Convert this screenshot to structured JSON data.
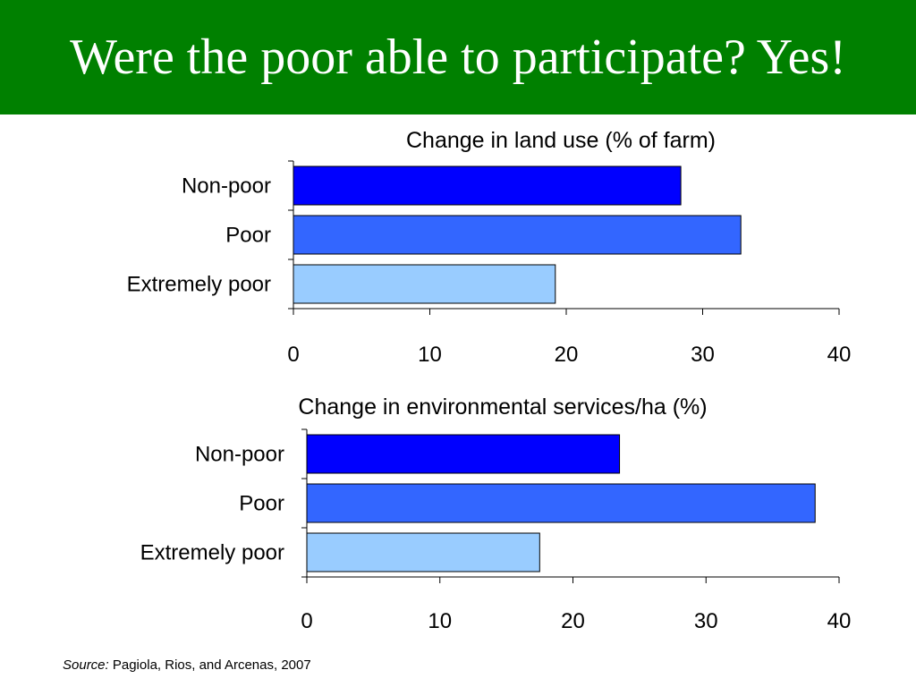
{
  "slide": {
    "title": "Were the poor able to participate? Yes!",
    "source_label": "Source:",
    "source_text": " Pagiola, Rios, and Arcenas, 2007"
  },
  "colors": {
    "header_bg": "#008000",
    "non_poor": "#0000FF",
    "poor": "#3366FF",
    "extremely_poor": "#99CCFF"
  },
  "chart_data": [
    {
      "type": "bar",
      "orientation": "horizontal",
      "title": "Change in land use (% of farm)",
      "categories": [
        "Non-poor",
        "Poor",
        "Extremely poor"
      ],
      "values": [
        28.4,
        32.8,
        19.2
      ],
      "bar_colors": [
        "#0000FF",
        "#3366FF",
        "#99CCFF"
      ],
      "xlim": [
        0,
        40
      ],
      "xticks": [
        0,
        10,
        20,
        30,
        40
      ],
      "xlabel": "",
      "ylabel": "",
      "grid": false,
      "legend": false
    },
    {
      "type": "bar",
      "orientation": "horizontal",
      "title": "Change in environmental services/ha (%)",
      "categories": [
        "Non-poor",
        "Poor",
        "Extremely poor"
      ],
      "values": [
        23.5,
        38.2,
        17.5
      ],
      "bar_colors": [
        "#0000FF",
        "#3366FF",
        "#99CCFF"
      ],
      "xlim": [
        0,
        40
      ],
      "xticks": [
        0,
        10,
        20,
        30,
        40
      ],
      "xlabel": "",
      "ylabel": "",
      "grid": false,
      "legend": false
    }
  ]
}
